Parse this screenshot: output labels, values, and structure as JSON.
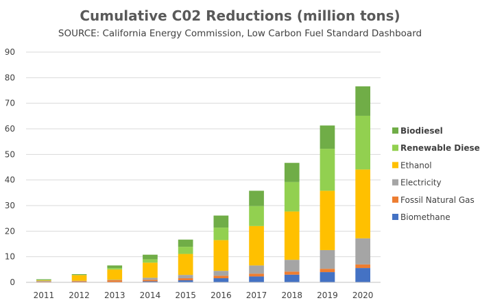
{
  "chart_data": {
    "type": "bar",
    "stacked": true,
    "title": "Cumulative C02 Reductions (million tons)",
    "subtitle": "SOURCE: California Energy Commission, Low Carbon Fuel Standard Dashboard",
    "xlabel": "",
    "ylabel": "",
    "ylim": [
      0,
      90
    ],
    "yticks": [
      0,
      10,
      20,
      30,
      40,
      50,
      60,
      70,
      80,
      90
    ],
    "grid": true,
    "legend_position": "right",
    "categories": [
      "2011",
      "2012",
      "2013",
      "2014",
      "2015",
      "2016",
      "2017",
      "2018",
      "2019",
      "2020"
    ],
    "series": [
      {
        "name": "Biomethane",
        "color": "#4472C4",
        "values": [
          0.1,
          0.1,
          0.1,
          0.4,
          0.8,
          1.6,
          2.3,
          3.0,
          4.0,
          5.6
        ]
      },
      {
        "name": "Fossil Natural Gas",
        "color": "#ED7D31",
        "values": [
          0.2,
          0.3,
          0.7,
          0.6,
          0.8,
          1.0,
          1.1,
          1.2,
          1.3,
          1.4
        ]
      },
      {
        "name": "Electricity",
        "color": "#A5A5A5",
        "values": [
          0.3,
          0.2,
          0.2,
          0.8,
          1.3,
          1.9,
          3.2,
          4.6,
          7.3,
          10.2
        ]
      },
      {
        "name": "Ethanol",
        "color": "#FFC000",
        "values": [
          0.2,
          2.2,
          4.0,
          5.9,
          8.2,
          12.0,
          15.4,
          18.9,
          23.2,
          26.9
        ]
      },
      {
        "name": "Renewable Diesel",
        "color": "#92D050",
        "values": [
          0.1,
          0.1,
          0.6,
          1.3,
          2.8,
          4.9,
          7.8,
          11.5,
          16.4,
          21.0
        ]
      },
      {
        "name": "Biodiesel",
        "color": "#70AD47",
        "values": [
          0.3,
          0.3,
          1.0,
          1.8,
          2.8,
          4.7,
          6.0,
          7.5,
          9.1,
          11.5
        ]
      }
    ],
    "legend_order": [
      "Biodiesel",
      "Renewable Diesel",
      "Ethanol",
      "Electricity",
      "Fossil Natural Gas",
      "Biomethane"
    ],
    "legend_bold": [
      "Biodiesel",
      "Renewable Diesel"
    ]
  }
}
